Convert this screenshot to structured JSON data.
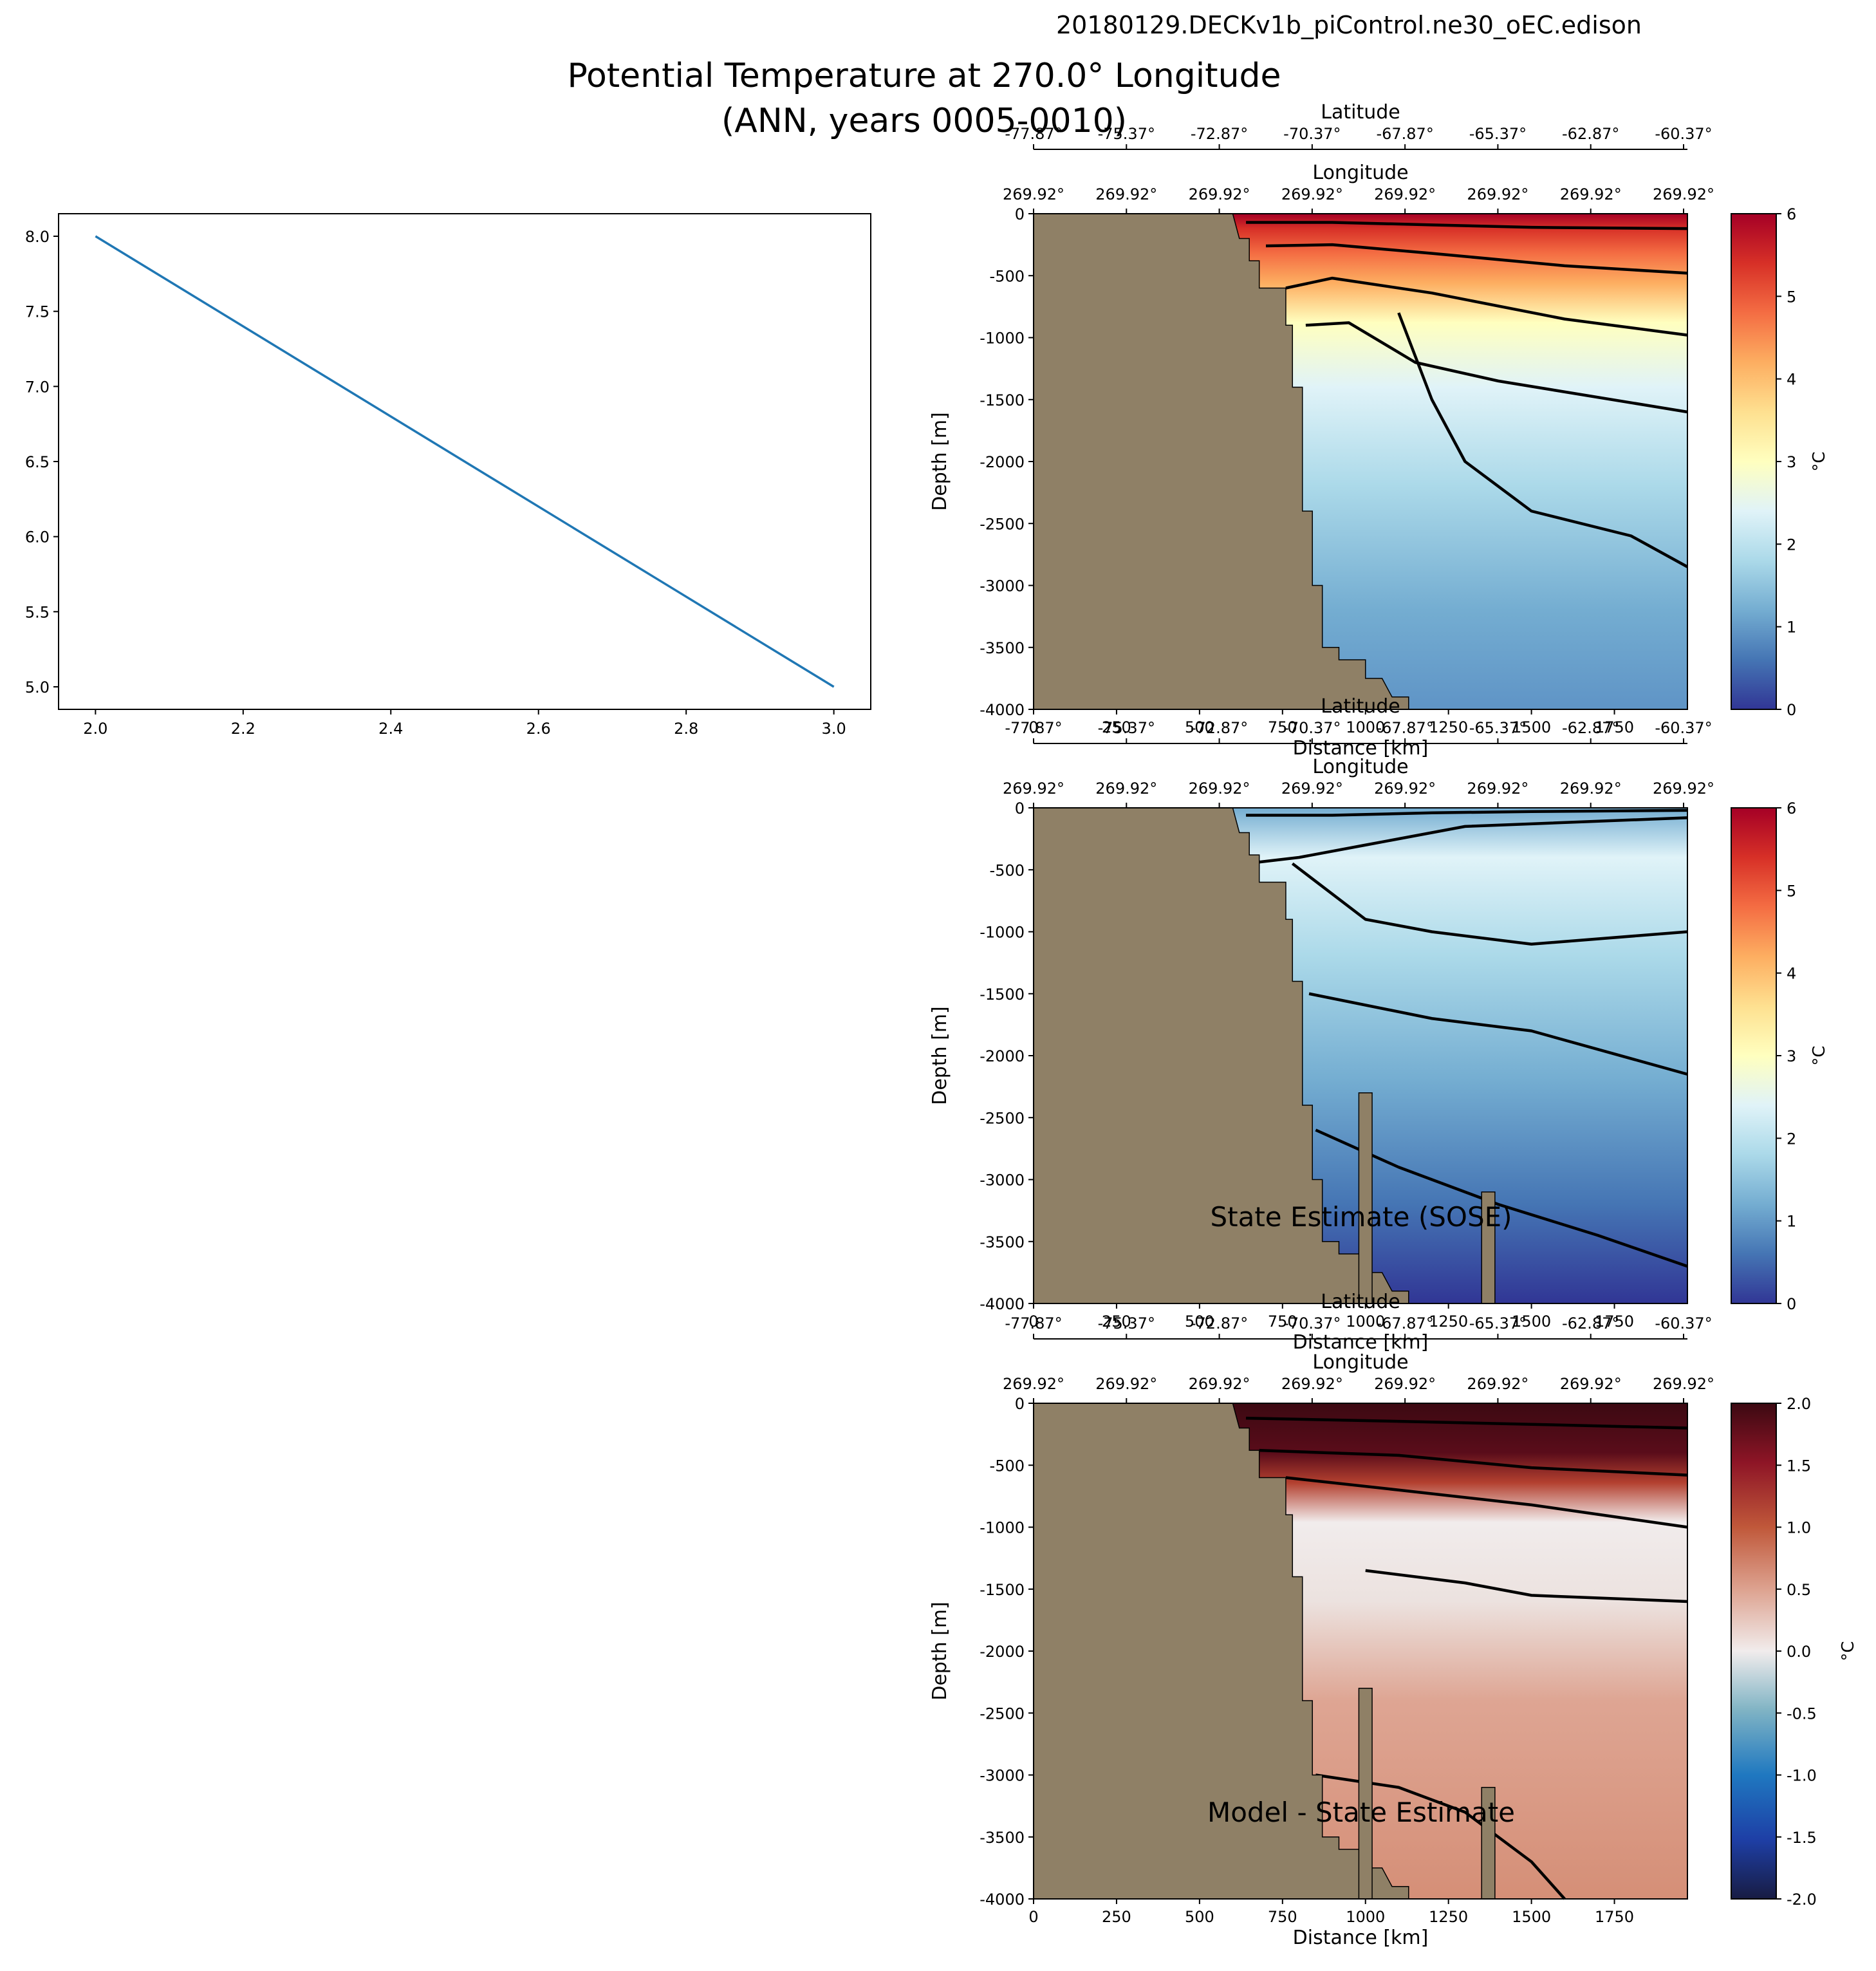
{
  "figure": {
    "run_name": "20180129.DECKv1b_piControl.ne30_oEC.edison",
    "title_line1": "Potential Temperature at 270.0° Longitude",
    "title_line2": "(ANN, years 0005-0010)"
  },
  "chart_data": [
    {
      "type": "line",
      "panel": "placeholder-line",
      "x": [
        2.0,
        3.0
      ],
      "y": [
        8.0,
        5.0
      ],
      "xlim": [
        1.95,
        3.05
      ],
      "ylim": [
        4.85,
        8.15
      ],
      "xticks": [
        "2.0",
        "2.2",
        "2.4",
        "2.6",
        "2.8",
        "3.0"
      ],
      "yticks": [
        "5.0",
        "5.5",
        "6.0",
        "6.5",
        "7.0",
        "7.5",
        "8.0"
      ],
      "color": "#1f77b4"
    },
    {
      "type": "heatmap",
      "panel": "model",
      "title": "",
      "xlabel": "Distance [km]",
      "ylabel": "Depth [m]",
      "top_axis1_label": "Latitude",
      "top_axis2_label": "Longitude",
      "xlim": [
        0,
        1970
      ],
      "ylim": [
        -4000,
        0
      ],
      "xticks": [
        "0",
        "250",
        "500",
        "750",
        "1000",
        "1250",
        "1500",
        "1750"
      ],
      "yticks": [
        "0",
        "-500",
        "-1000",
        "-1500",
        "-2000",
        "-2500",
        "-3000",
        "-3500",
        "-4000"
      ],
      "lat_ticks": [
        "-77.87°",
        "-75.37°",
        "-72.87°",
        "-70.37°",
        "-67.87°",
        "-65.37°",
        "-62.87°",
        "-60.37°"
      ],
      "lon_ticks": [
        "269.92°",
        "269.92°",
        "269.92°",
        "269.92°",
        "269.92°",
        "269.92°",
        "269.92°",
        "269.92°"
      ],
      "colorbar": {
        "label": "°C",
        "range": [
          0,
          6
        ],
        "ticks": [
          "0",
          "1",
          "2",
          "3",
          "4",
          "5",
          "6"
        ],
        "colormap": "RdYlBu_r"
      }
    },
    {
      "type": "heatmap",
      "panel": "observations",
      "title": "State Estimate (SOSE)",
      "xlabel": "Distance [km]",
      "ylabel": "Depth [m]",
      "top_axis1_label": "Latitude",
      "top_axis2_label": "Longitude",
      "xlim": [
        0,
        1970
      ],
      "ylim": [
        -4000,
        0
      ],
      "xticks": [
        "0",
        "250",
        "500",
        "750",
        "1000",
        "1250",
        "1500",
        "1750"
      ],
      "yticks": [
        "0",
        "-500",
        "-1000",
        "-1500",
        "-2000",
        "-2500",
        "-3000",
        "-3500",
        "-4000"
      ],
      "lat_ticks": [
        "-77.87°",
        "-75.37°",
        "-72.87°",
        "-70.37°",
        "-67.87°",
        "-65.37°",
        "-62.87°",
        "-60.37°"
      ],
      "lon_ticks": [
        "269.92°",
        "269.92°",
        "269.92°",
        "269.92°",
        "269.92°",
        "269.92°",
        "269.92°",
        "269.92°"
      ],
      "colorbar": {
        "label": "°C",
        "range": [
          0,
          6
        ],
        "ticks": [
          "0",
          "1",
          "2",
          "3",
          "4",
          "5",
          "6"
        ],
        "colormap": "RdYlBu_r"
      }
    },
    {
      "type": "heatmap",
      "panel": "difference",
      "title": "Model - State Estimate",
      "xlabel": "Distance [km]",
      "ylabel": "Depth [m]",
      "top_axis1_label": "Latitude",
      "top_axis2_label": "Longitude",
      "xlim": [
        0,
        1970
      ],
      "ylim": [
        -4000,
        0
      ],
      "xticks": [
        "0",
        "250",
        "500",
        "750",
        "1000",
        "1250",
        "1500",
        "1750"
      ],
      "yticks": [
        "0",
        "-500",
        "-1000",
        "-1500",
        "-2000",
        "-2500",
        "-3000",
        "-3500",
        "-4000"
      ],
      "lat_ticks": [
        "-77.87°",
        "-75.37°",
        "-72.87°",
        "-70.37°",
        "-67.87°",
        "-65.37°",
        "-62.87°",
        "-60.37°"
      ],
      "lon_ticks": [
        "269.92°",
        "269.92°",
        "269.92°",
        "269.92°",
        "269.92°",
        "269.92°",
        "269.92°",
        "269.92°"
      ],
      "colorbar": {
        "label": "°C",
        "range": [
          -2.0,
          2.0
        ],
        "ticks": [
          "-2.0",
          "-1.5",
          "-1.0",
          "-0.5",
          "0.0",
          "0.5",
          "1.0",
          "1.5",
          "2.0"
        ],
        "colormap": "balance"
      }
    }
  ],
  "colors": {
    "land": "#8f8066",
    "line": "#1f77b4"
  }
}
